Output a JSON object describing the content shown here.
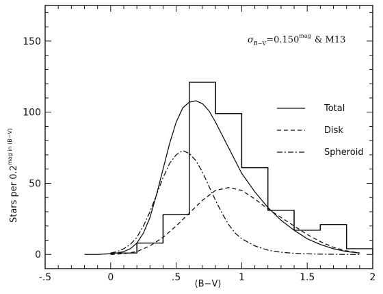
{
  "chart_data": {
    "type": "line",
    "title": "",
    "xlabel": "(B−V)",
    "ylabel_main": "Stars per 0.2",
    "ylabel_sup": "mag in (B−V)",
    "xlim": [
      -0.5,
      2.0
    ],
    "ylim": [
      -10,
      175
    ],
    "xticks": [
      {
        "value": -0.5,
        "label": "-.5"
      },
      {
        "value": 0,
        "label": "0"
      },
      {
        "value": 0.5,
        "label": ".5"
      },
      {
        "value": 1.0,
        "label": "1"
      },
      {
        "value": 1.5,
        "label": "1.5"
      },
      {
        "value": 2.0,
        "label": "2"
      }
    ],
    "yticks": [
      {
        "value": 0,
        "label": "0"
      },
      {
        "value": 50,
        "label": "50"
      },
      {
        "value": 100,
        "label": "100"
      },
      {
        "value": 150,
        "label": "150"
      }
    ],
    "annotation": {
      "sigma": "σ",
      "subscript": "B−V",
      "value": "=0.150",
      "superscript": "mag",
      "suffix": "& M13"
    },
    "histogram": {
      "name": "",
      "bin_edges": [
        0,
        0.2,
        0.4,
        0.6,
        0.8,
        1.0,
        1.2,
        1.4,
        1.6,
        1.8,
        2.0
      ],
      "counts": [
        1,
        8,
        28,
        121,
        99,
        61,
        31,
        17,
        21,
        4
      ]
    },
    "series": [
      {
        "name": "Total",
        "style": "solid",
        "x": [
          -0.2,
          -0.1,
          0.0,
          0.05,
          0.1,
          0.15,
          0.2,
          0.25,
          0.3,
          0.35,
          0.4,
          0.45,
          0.5,
          0.55,
          0.6,
          0.65,
          0.7,
          0.75,
          0.8,
          0.85,
          0.9,
          0.95,
          1.0,
          1.1,
          1.2,
          1.3,
          1.4,
          1.5,
          1.6,
          1.7,
          1.8,
          1.9
        ],
        "y": [
          0,
          0,
          0.5,
          1,
          2,
          4,
          8,
          15,
          26,
          42,
          60,
          78,
          93,
          103,
          107,
          108,
          106,
          101,
          93,
          84,
          75,
          66,
          57,
          44,
          33,
          24,
          17,
          11,
          7,
          4,
          2,
          1
        ]
      },
      {
        "name": "Disk",
        "style": "dashed",
        "x": [
          0.0,
          0.1,
          0.2,
          0.3,
          0.4,
          0.5,
          0.6,
          0.7,
          0.8,
          0.9,
          1.0,
          1.1,
          1.2,
          1.3,
          1.4,
          1.5,
          1.6,
          1.7,
          1.8,
          1.9
        ],
        "y": [
          0,
          0.5,
          2,
          6,
          12,
          20,
          29,
          38,
          45,
          47,
          45,
          39,
          32,
          26,
          20,
          14,
          9,
          5,
          2.5,
          1
        ]
      },
      {
        "name": "Spheroid",
        "style": "dashdot",
        "x": [
          0.0,
          0.05,
          0.1,
          0.15,
          0.2,
          0.25,
          0.3,
          0.35,
          0.4,
          0.45,
          0.5,
          0.55,
          0.6,
          0.65,
          0.7,
          0.75,
          0.8,
          0.85,
          0.9,
          0.95,
          1.0,
          1.1,
          1.2,
          1.3,
          1.4,
          1.5,
          1.6,
          1.7,
          1.8,
          1.9
        ],
        "y": [
          1,
          2,
          4,
          7,
          12,
          20,
          30,
          42,
          54,
          64,
          70,
          73,
          71,
          66,
          58,
          48,
          38,
          29,
          21,
          15,
          11,
          6,
          3,
          1.5,
          0.8,
          0.4,
          0.2,
          0.1,
          0,
          0
        ]
      }
    ],
    "legend": {
      "placement": "right"
    }
  }
}
